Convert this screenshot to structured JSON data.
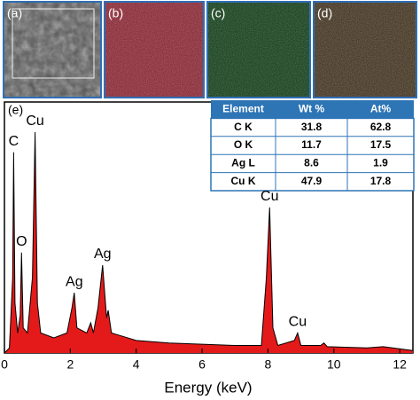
{
  "panels": [
    "(a)",
    "(b)",
    "(c)",
    "(d)"
  ],
  "chart_data": {
    "type": "area",
    "panel_label": "(e)",
    "xlabel": "Energy (keV)",
    "color": "#e41a1a",
    "x": [
      0,
      0.15,
      0.25,
      0.28,
      0.32,
      0.4,
      0.48,
      0.52,
      0.57,
      0.7,
      0.85,
      0.93,
      1.0,
      1.1,
      1.5,
      1.9,
      2.05,
      2.12,
      2.2,
      2.5,
      2.62,
      2.7,
      2.84,
      2.98,
      3.1,
      3.15,
      3.25,
      3.5,
      4,
      5,
      6,
      7,
      7.8,
      7.95,
      8.05,
      8.15,
      8.3,
      8.8,
      8.9,
      9.0,
      9.6,
      9.7,
      9.8,
      11,
      11.5,
      12.4
    ],
    "values": [
      0,
      2,
      30,
      80,
      20,
      8,
      15,
      40,
      10,
      8,
      30,
      88,
      20,
      8,
      6,
      8,
      18,
      24,
      10,
      8,
      12,
      8,
      18,
      35,
      14,
      17,
      8,
      7,
      5,
      4,
      3.5,
      3,
      3,
      30,
      58,
      10,
      3,
      5,
      8,
      3,
      3,
      4,
      2.5,
      2,
      2.5,
      1
    ],
    "xlim": [
      0,
      12.4
    ],
    "xticks": [
      0,
      2,
      4,
      6,
      8,
      10,
      12
    ],
    "ylim": [
      0,
      100
    ],
    "annotations": [
      {
        "text": "C",
        "x": 0.28
      },
      {
        "text": "O",
        "x": 0.52
      },
      {
        "text": "Cu",
        "x": 0.93
      },
      {
        "text": "Ag",
        "x": 2.12
      },
      {
        "text": "Ag",
        "x": 2.98
      },
      {
        "text": "Cu",
        "x": 8.05
      },
      {
        "text": "Cu",
        "x": 8.9
      }
    ]
  },
  "table": {
    "columns": [
      "Element",
      "Wt %",
      "At%"
    ],
    "rows": [
      [
        "C K",
        "31.8",
        "62.8"
      ],
      [
        "O K",
        "11.7",
        "17.5"
      ],
      [
        "Ag L",
        "8.6",
        "1.9"
      ],
      [
        "Cu K",
        "47.9",
        "17.8"
      ]
    ]
  }
}
